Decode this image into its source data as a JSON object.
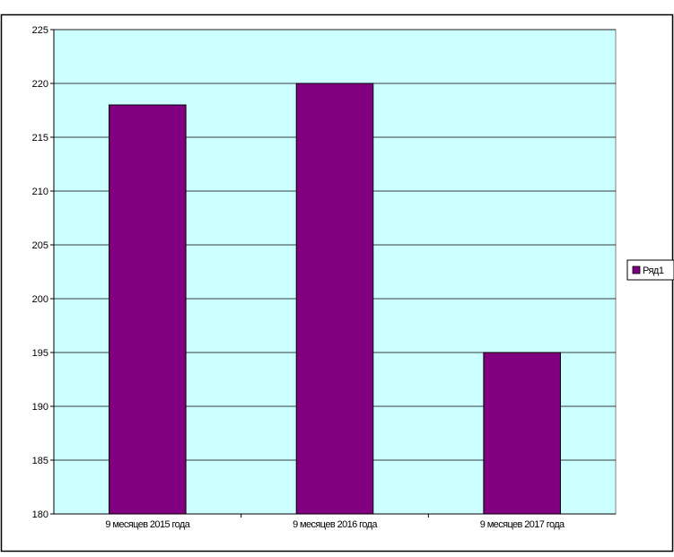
{
  "chart_data": {
    "type": "bar",
    "categories": [
      "9 месяцев 2015 года",
      "9 месяцев 2016 года",
      "9 месяцев 2017 года"
    ],
    "series": [
      {
        "name": "Ряд1",
        "values": [
          218,
          220,
          195
        ]
      }
    ],
    "xlabel": "",
    "ylabel": "",
    "ylim": [
      180,
      225
    ],
    "y_ticks": [
      "180",
      "185",
      "190",
      "195",
      "200",
      "205",
      "210",
      "215",
      "220",
      "225"
    ],
    "grid": true,
    "legend_position": "right",
    "colors": {
      "bar_fill": "#800080",
      "plot_background": "#ccffff",
      "gridline": "#000000",
      "chart_border": "#000000"
    }
  }
}
